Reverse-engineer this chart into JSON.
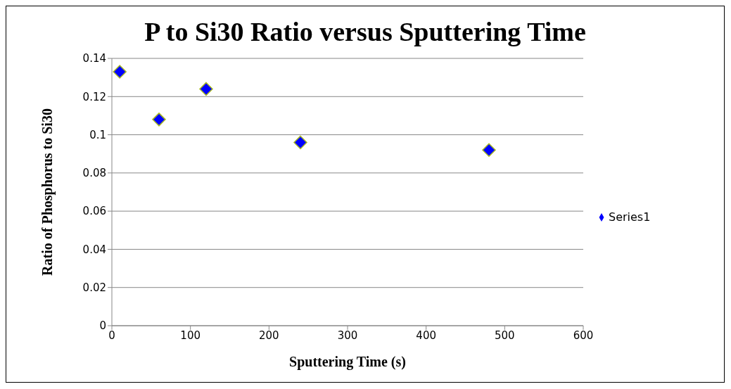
{
  "chart_data": {
    "type": "scatter",
    "title": "P to Si30 Ratio versus Sputtering Time",
    "xlabel": "Sputtering Time (s)",
    "ylabel": "Ratio of Phosphorus to Si30",
    "x": [
      10,
      60,
      120,
      240,
      480
    ],
    "series": [
      {
        "name": "Series1",
        "color": "#0000ff",
        "values": [
          0.133,
          0.108,
          0.124,
          0.096,
          0.092
        ]
      }
    ],
    "xlim": [
      0,
      600
    ],
    "xticks": [
      0,
      100,
      200,
      300,
      400,
      500,
      600
    ],
    "ylim": [
      0,
      0.14
    ],
    "yticks": [
      0,
      0.02,
      0.04,
      0.06,
      0.08,
      0.1,
      0.12,
      0.14
    ],
    "grid": "y",
    "legend": "right",
    "marker": "diamond"
  }
}
